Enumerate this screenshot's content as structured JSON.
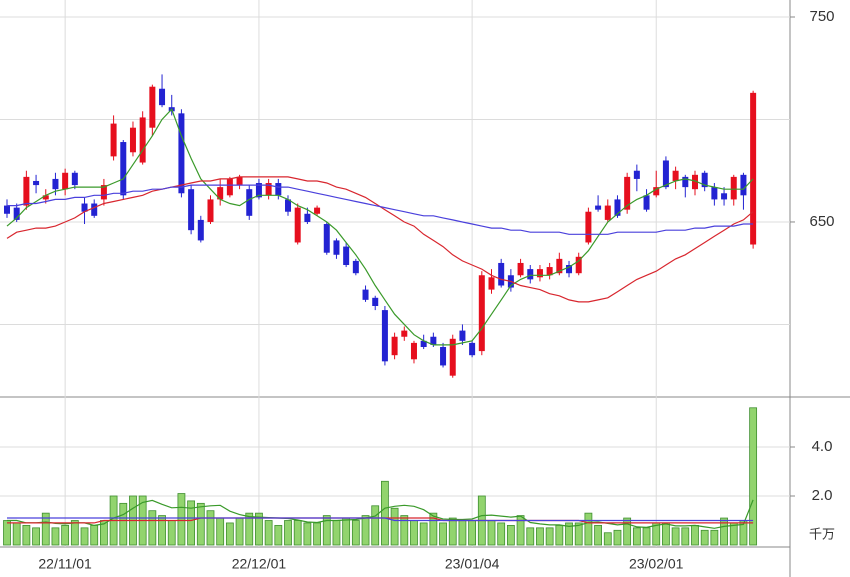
{
  "chart_data": [
    {
      "type": "candlestick",
      "ylim": [
        564.6,
        758.3
      ],
      "yticks": [
        650,
        750
      ],
      "minor_yticks": [
        600,
        700
      ],
      "grid": true,
      "up_color": "#e60f1e",
      "down_color": "#2323d2",
      "open": [
        658,
        657,
        658,
        670,
        661,
        671,
        666,
        674,
        659,
        659,
        661,
        682,
        689,
        684,
        679,
        696,
        715,
        706,
        703,
        666,
        651,
        650,
        661,
        663,
        668,
        666,
        669,
        663,
        669,
        661,
        640,
        654,
        654,
        649,
        641,
        638,
        631,
        617,
        613,
        607,
        585,
        594,
        583,
        592,
        594,
        589,
        575,
        597,
        591,
        587,
        617,
        630,
        624,
        624,
        627,
        623,
        624,
        625,
        629,
        625,
        640,
        658,
        651,
        661,
        656,
        675,
        663,
        663,
        680,
        670,
        672,
        666,
        674,
        667,
        664,
        661,
        673,
        639
      ],
      "high": [
        661,
        659,
        675,
        673,
        666,
        674,
        676,
        675,
        662,
        661,
        671,
        702,
        690,
        699,
        704,
        717,
        722,
        712,
        705,
        668,
        653,
        663,
        671,
        672,
        673,
        668,
        671,
        671,
        671,
        663,
        659,
        657,
        658,
        650,
        642,
        640,
        632,
        619,
        614,
        609,
        596,
        599,
        592,
        595,
        596,
        591,
        595,
        600,
        592,
        626,
        627,
        632,
        627,
        632,
        629,
        629,
        630,
        635,
        631,
        635,
        657,
        663,
        661,
        663,
        674,
        678,
        666,
        675,
        682,
        677,
        673,
        675,
        675,
        669,
        667,
        673,
        674,
        714
      ],
      "low": [
        652,
        650,
        656,
        664,
        659,
        663,
        663,
        666,
        649,
        652,
        658,
        680,
        661,
        682,
        678,
        692,
        706,
        702,
        662,
        644,
        640,
        649,
        658,
        662,
        666,
        651,
        661,
        661,
        661,
        653,
        639,
        649,
        653,
        634,
        632,
        628,
        624,
        611,
        607,
        580,
        583,
        592,
        581,
        588,
        589,
        579,
        574,
        590,
        584,
        585,
        615,
        618,
        616,
        623,
        620,
        621,
        622,
        624,
        623,
        624,
        639,
        655,
        650,
        652,
        654,
        665,
        655,
        662,
        666,
        666,
        662,
        663,
        665,
        658,
        658,
        658,
        656,
        637
      ],
      "close": [
        654,
        651,
        672,
        668,
        663,
        666,
        674,
        668,
        655,
        653,
        668,
        698,
        663,
        696,
        701,
        716,
        707,
        704,
        664,
        646,
        641,
        661,
        667,
        671,
        672,
        653,
        662,
        669,
        663,
        655,
        657,
        650,
        657,
        635,
        634,
        629,
        625,
        612,
        609,
        582,
        594,
        597,
        591,
        589,
        590,
        580,
        593,
        592,
        585,
        624,
        623,
        619,
        618,
        630,
        622,
        627,
        628,
        632,
        625,
        633,
        655,
        656,
        658,
        653,
        672,
        671,
        656,
        667,
        667,
        675,
        667,
        673,
        667,
        661,
        661,
        672,
        663,
        713
      ],
      "series": [
        {
          "color": "#3a9a2a",
          "values": [
            648,
            652,
            657,
            660,
            663,
            665,
            666,
            667,
            667,
            667,
            667,
            669,
            671,
            678,
            685,
            692,
            700,
            705,
            692,
            681,
            671,
            666,
            661,
            659,
            658,
            661,
            663,
            663,
            663,
            661,
            658,
            656,
            653,
            650,
            646,
            640,
            634,
            627,
            619,
            612,
            605,
            600,
            595,
            592,
            590,
            590,
            590,
            591,
            592,
            598,
            605,
            612,
            619,
            622,
            624,
            624,
            624,
            626,
            628,
            631,
            636,
            643,
            650,
            654,
            658,
            661,
            663,
            666,
            668,
            670,
            671,
            670,
            668,
            667,
            666,
            666,
            666,
            671
          ]
        },
        {
          "color": "#d8262e",
          "values": [
            642,
            645,
            646,
            647,
            647,
            648,
            650,
            652,
            655,
            657,
            659,
            660,
            661,
            662,
            663,
            665,
            666,
            667,
            668,
            669,
            670,
            670,
            671,
            671,
            672,
            672,
            672,
            672,
            672,
            672,
            671,
            670,
            670,
            669,
            667,
            666,
            664,
            662,
            659,
            656,
            653,
            650,
            648,
            644,
            641,
            638,
            634,
            631,
            629,
            627,
            624,
            622,
            621,
            619,
            618,
            617,
            615,
            614,
            612,
            611,
            611,
            612,
            613,
            616,
            619,
            622,
            624,
            626,
            629,
            632,
            634,
            637,
            640,
            643,
            646,
            649,
            651,
            655
          ]
        },
        {
          "color": "#4a40dc",
          "values": [
            658,
            658,
            659,
            659,
            660,
            661,
            661,
            662,
            662,
            663,
            663,
            664,
            664,
            665,
            665,
            666,
            666,
            667,
            667,
            668,
            668,
            668,
            668,
            668,
            668,
            668,
            668,
            668,
            667,
            667,
            666,
            665,
            664,
            663,
            662,
            661,
            660,
            659,
            658,
            657,
            656,
            655,
            654,
            653,
            653,
            652,
            651,
            650,
            649,
            648,
            647,
            647,
            646,
            646,
            645,
            645,
            645,
            645,
            644,
            644,
            644,
            644,
            644,
            645,
            645,
            645,
            645,
            645,
            646,
            646,
            646,
            647,
            647,
            648,
            648,
            648,
            649,
            649
          ]
        }
      ]
    },
    {
      "type": "bar",
      "categories": [
        null,
        null,
        null,
        null,
        null,
        null,
        "22/11/01",
        null,
        null,
        null,
        null,
        null,
        null,
        null,
        null,
        null,
        null,
        null,
        null,
        null,
        null,
        null,
        null,
        null,
        null,
        null,
        "22/12/01",
        null,
        null,
        null,
        null,
        null,
        null,
        null,
        null,
        null,
        null,
        null,
        null,
        null,
        null,
        null,
        null,
        null,
        null,
        null,
        null,
        null,
        "23/01/04",
        null,
        null,
        null,
        null,
        null,
        null,
        null,
        null,
        null,
        null,
        null,
        null,
        null,
        null,
        null,
        null,
        null,
        null,
        "23/02/01",
        null,
        null,
        null,
        null,
        null,
        null,
        null,
        null,
        null,
        null
      ],
      "ylim": [
        0,
        6.04
      ],
      "yticks": [
        {
          "value": 4,
          "label": "4.0"
        },
        {
          "value": 2,
          "label": "2.0"
        }
      ],
      "grid": true,
      "unit_label": "千万",
      "color": "#92d46e",
      "edge_color": "#3f8f2f",
      "values": [
        1.0,
        0.9,
        0.8,
        0.7,
        1.3,
        0.7,
        0.8,
        1.0,
        0.7,
        0.8,
        1.0,
        2.0,
        1.7,
        2.0,
        2.0,
        1.4,
        1.2,
        1.0,
        2.1,
        1.8,
        1.7,
        1.4,
        1.1,
        0.9,
        1.1,
        1.3,
        1.3,
        1.0,
        0.8,
        1.0,
        1.0,
        0.9,
        0.9,
        1.2,
        1.0,
        1.1,
        1.0,
        1.2,
        1.6,
        2.6,
        1.5,
        1.2,
        1.0,
        0.9,
        1.3,
        0.9,
        1.1,
        1.0,
        1.0,
        2.0,
        1.0,
        0.9,
        0.8,
        1.2,
        0.7,
        0.7,
        0.7,
        0.8,
        0.9,
        0.9,
        1.3,
        0.8,
        0.5,
        0.6,
        1.1,
        0.7,
        0.7,
        0.9,
        0.9,
        0.7,
        0.7,
        0.8,
        0.6,
        0.6,
        1.1,
        0.9,
        1.0,
        5.6
      ],
      "series": [
        {
          "color": "#3a9a2a",
          "values": [
            1.0,
            1.0,
            0.9,
            0.9,
            0.94,
            0.88,
            0.86,
            0.9,
            0.9,
            0.8,
            0.86,
            1.1,
            1.24,
            1.5,
            1.74,
            1.82,
            1.66,
            1.52,
            1.54,
            1.5,
            1.56,
            1.6,
            1.62,
            1.38,
            1.24,
            1.16,
            1.14,
            1.12,
            1.1,
            1.08,
            1.02,
            0.94,
            0.92,
            1.0,
            1.0,
            1.02,
            1.04,
            1.1,
            1.18,
            1.5,
            1.58,
            1.62,
            1.58,
            1.44,
            1.18,
            1.06,
            1.04,
            1.04,
            1.06,
            1.2,
            1.22,
            1.18,
            1.14,
            1.18,
            0.92,
            0.86,
            0.82,
            0.82,
            0.76,
            0.8,
            0.92,
            0.94,
            0.88,
            0.82,
            0.86,
            0.74,
            0.72,
            0.8,
            0.86,
            0.78,
            0.78,
            0.8,
            0.74,
            0.68,
            0.76,
            0.8,
            0.84,
            1.84
          ]
        },
        {
          "color": "#d8262e",
          "values": [
            0.9,
            0.9,
            0.9,
            0.9,
            0.9,
            0.9,
            0.9,
            0.9,
            0.9,
            0.9,
            1.0,
            1.0,
            1.0,
            1.0,
            1.0,
            1.0,
            1.0,
            1.0,
            1.0,
            1.0,
            1.1,
            1.1,
            1.1,
            1.1,
            1.1,
            1.1,
            1.1,
            1.1,
            1.1,
            1.1,
            1.1,
            1.1,
            1.1,
            1.1,
            1.1,
            1.1,
            1.1,
            1.1,
            1.1,
            1.1,
            1.1,
            1.1,
            1.1,
            1.1,
            1.1,
            1.0,
            1.0,
            1.0,
            1.0,
            1.0,
            1.0,
            1.0,
            1.0,
            1.0,
            1.0,
            1.0,
            1.0,
            1.0,
            1.0,
            1.0,
            0.9,
            0.9,
            0.9,
            0.9,
            0.9,
            0.9,
            0.9,
            0.9,
            0.9,
            0.9,
            0.9,
            0.9,
            0.9,
            0.9,
            0.9,
            0.9,
            0.9,
            0.9
          ]
        },
        {
          "color": "#4a40dc",
          "values": [
            1.1,
            1.1,
            1.1,
            1.1,
            1.1,
            1.1,
            1.1,
            1.1,
            1.1,
            1.1,
            1.1,
            1.1,
            1.1,
            1.1,
            1.1,
            1.1,
            1.1,
            1.1,
            1.1,
            1.1,
            1.1,
            1.1,
            1.1,
            1.1,
            1.1,
            1.1,
            1.1,
            1.1,
            1.1,
            1.1,
            1.1,
            1.1,
            1.1,
            1.1,
            1.1,
            1.1,
            1.1,
            1.1,
            1.1,
            1.1,
            1.0,
            1.0,
            1.0,
            1.0,
            1.0,
            1.0,
            1.0,
            1.0,
            1.0,
            1.0,
            1.0,
            1.0,
            1.0,
            1.0,
            1.0,
            1.0,
            1.0,
            1.0,
            1.0,
            1.0,
            1.0,
            1.0,
            1.0,
            1.0,
            1.0,
            1.0,
            1.0,
            1.0,
            1.0,
            1.0,
            1.0,
            1.0,
            1.0,
            1.0,
            1.0,
            1.0,
            1.0,
            1.0
          ]
        }
      ]
    }
  ]
}
